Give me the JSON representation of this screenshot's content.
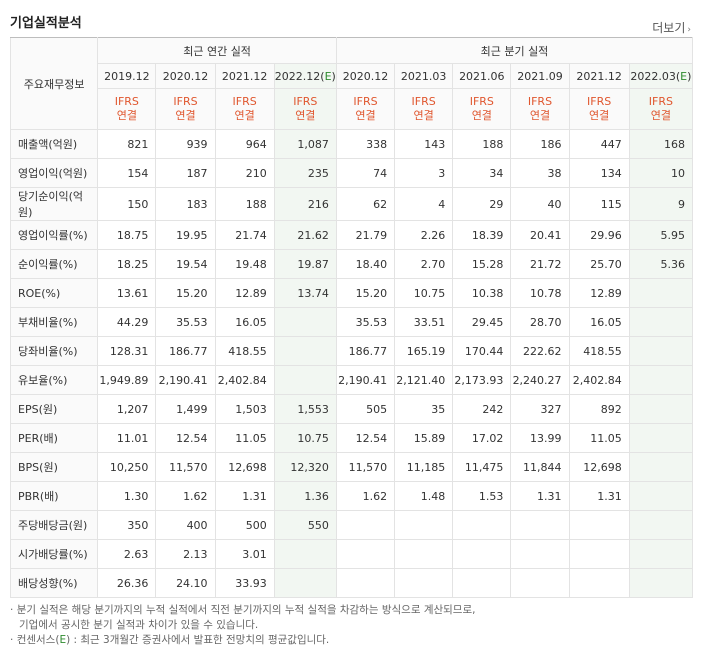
{
  "header": {
    "title": "기업실적분석",
    "more_label": "더보기"
  },
  "table": {
    "label_header": "주요재무정보",
    "groups": [
      "최근 연간 실적",
      "최근 분기 실적"
    ],
    "periods": [
      "2019.12",
      "2020.12",
      "2021.12",
      "2022.12(E)",
      "2020.12",
      "2021.03",
      "2021.06",
      "2021.09",
      "2021.12",
      "2022.03(E)"
    ],
    "ifrs_line1": "IFRS",
    "ifrs_line2": "연결",
    "rows": [
      {
        "label": "매출액(억원)",
        "values": [
          "821",
          "939",
          "964",
          "1,087",
          "338",
          "143",
          "188",
          "186",
          "447",
          "168"
        ]
      },
      {
        "label": "영업이익(억원)",
        "values": [
          "154",
          "187",
          "210",
          "235",
          "74",
          "3",
          "34",
          "38",
          "134",
          "10"
        ]
      },
      {
        "label": "당기순이익(억원)",
        "values": [
          "150",
          "183",
          "188",
          "216",
          "62",
          "4",
          "29",
          "40",
          "115",
          "9"
        ]
      },
      {
        "label": "영업이익률(%)",
        "values": [
          "18.75",
          "19.95",
          "21.74",
          "21.62",
          "21.79",
          "2.26",
          "18.39",
          "20.41",
          "29.96",
          "5.95"
        ]
      },
      {
        "label": "순이익률(%)",
        "values": [
          "18.25",
          "19.54",
          "19.48",
          "19.87",
          "18.40",
          "2.70",
          "15.28",
          "21.72",
          "25.70",
          "5.36"
        ]
      },
      {
        "label": "ROE(%)",
        "values": [
          "13.61",
          "15.20",
          "12.89",
          "13.74",
          "15.20",
          "10.75",
          "10.38",
          "10.78",
          "12.89",
          ""
        ]
      },
      {
        "label": "부채비율(%)",
        "values": [
          "44.29",
          "35.53",
          "16.05",
          "",
          "35.53",
          "33.51",
          "29.45",
          "28.70",
          "16.05",
          ""
        ]
      },
      {
        "label": "당좌비율(%)",
        "values": [
          "128.31",
          "186.77",
          "418.55",
          "",
          "186.77",
          "165.19",
          "170.44",
          "222.62",
          "418.55",
          ""
        ]
      },
      {
        "label": "유보율(%)",
        "values": [
          "1,949.89",
          "2,190.41",
          "2,402.84",
          "",
          "2,190.41",
          "2,121.40",
          "2,173.93",
          "2,240.27",
          "2,402.84",
          ""
        ]
      },
      {
        "label": "EPS(원)",
        "values": [
          "1,207",
          "1,499",
          "1,503",
          "1,553",
          "505",
          "35",
          "242",
          "327",
          "892",
          ""
        ]
      },
      {
        "label": "PER(배)",
        "values": [
          "11.01",
          "12.54",
          "11.05",
          "10.75",
          "12.54",
          "15.89",
          "17.02",
          "13.99",
          "11.05",
          ""
        ]
      },
      {
        "label": "BPS(원)",
        "values": [
          "10,250",
          "11,570",
          "12,698",
          "12,320",
          "11,570",
          "11,185",
          "11,475",
          "11,844",
          "12,698",
          ""
        ]
      },
      {
        "label": "PBR(배)",
        "values": [
          "1.30",
          "1.62",
          "1.31",
          "1.36",
          "1.62",
          "1.48",
          "1.53",
          "1.31",
          "1.31",
          ""
        ]
      },
      {
        "label": "주당배당금(원)",
        "values": [
          "350",
          "400",
          "500",
          "550",
          "",
          "",
          "",
          "",
          "",
          ""
        ]
      },
      {
        "label": "시가배당률(%)",
        "values": [
          "2.63",
          "2.13",
          "3.01",
          "",
          "",
          "",
          "",
          "",
          "",
          ""
        ]
      },
      {
        "label": "배당성향(%)",
        "values": [
          "26.36",
          "24.10",
          "33.93",
          "",
          "",
          "",
          "",
          "",
          "",
          ""
        ]
      }
    ]
  },
  "notes": {
    "line1": "분기 실적은 해당 분기까지의 누적 실적에서 직전 분기까지의 누적 실적을 차감하는 방식으로 계산되므로,",
    "line2": "기업에서 공시한 분기 실적과 차이가 있을 수 있습니다.",
    "line3_pre": "컨센서스(",
    "line3_e": "E",
    "line3_post": ") : 최근 3개월간 증권사에서 발표한 전망치의 평균값입니다."
  }
}
